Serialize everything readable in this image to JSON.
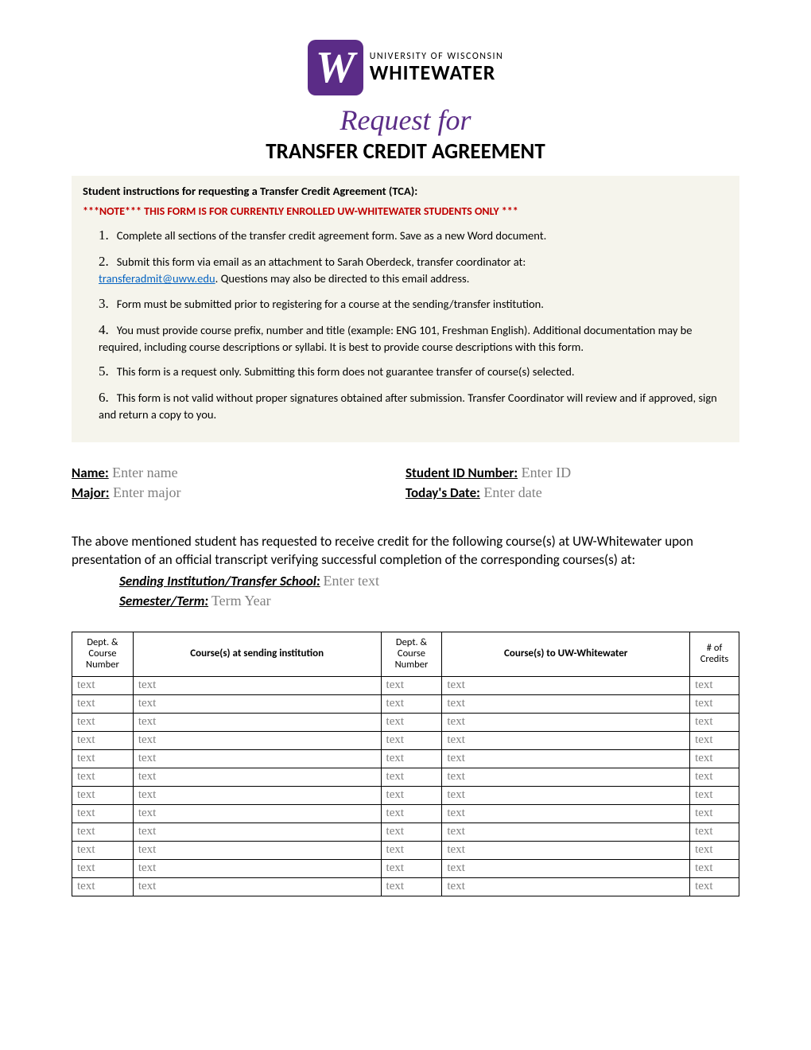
{
  "logo": {
    "university_line": "UNIVERSITY OF WISCONSIN",
    "name": "WHITEWATER",
    "mark_letter": "W",
    "mark_bg": "#5b2c87"
  },
  "titles": {
    "request_for": "Request for",
    "main": "TRANSFER CREDIT AGREEMENT"
  },
  "instructions": {
    "heading": "Student instructions for requesting a Transfer Credit Agreement (TCA):",
    "note": "***NOTE*** THIS FORM IS FOR CURRENTLY ENROLLED UW-WHITEWATER STUDENTS ONLY ***",
    "items": [
      "Complete all sections of the transfer credit agreement form.  Save as a new Word document.",
      "Submit this form via email as an attachment to Sarah Oberdeck, transfer coordinator at:",
      "Form must be submitted prior to registering for a course at the sending/transfer institution.",
      "You must provide course prefix, number and title (example:  ENG 101, Freshman English).  Additional documentation may be required, including course descriptions or syllabi.  It is best to provide course descriptions with this form.",
      "This form is a request only.  Submitting this form does not guarantee transfer of course(s) selected.",
      "This form is not valid without proper signatures obtained after submission.  Transfer Coordinator will review and if approved, sign and return a copy to you."
    ],
    "email": "transferadmit@uww.edu",
    "email_tail": ".  Questions may also be directed to this email address."
  },
  "fields": {
    "name_label": "Name:",
    "name_ph": "Enter name",
    "id_label": "Student ID Number:",
    "id_ph": "Enter ID",
    "major_label": "Major:",
    "major_ph": "Enter major",
    "date_label": "Today's Date:",
    "date_ph": "Enter date"
  },
  "body_para": "The above mentioned student has requested to receive credit for the following course(s) at UW-Whitewater upon presentation of an official transcript verifying successful completion of the corresponding courses(s) at:",
  "sending": {
    "label": "Sending Institution/Transfer School:",
    "ph": "Enter text"
  },
  "term": {
    "label": "Semester/Term:",
    "ph": "Term  Year"
  },
  "table": {
    "headers": {
      "dept1": "Dept. & Course Number",
      "course1": "Course(s) at sending institution",
      "dept2": "Dept. & Course Number",
      "course2": "Course(s) to UW-Whitewater",
      "credits": "# of Credits"
    },
    "cell_ph": "text",
    "row_count": 12
  }
}
